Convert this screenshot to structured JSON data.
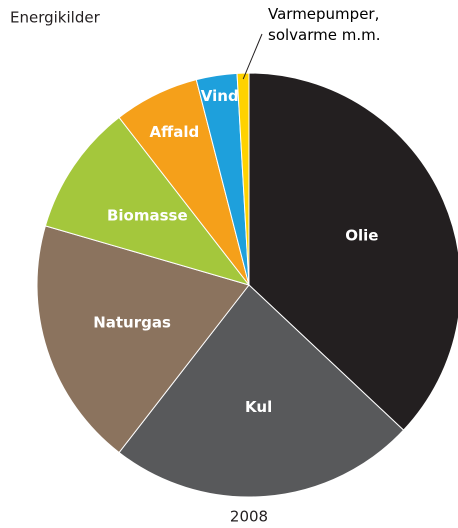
{
  "chart_data": {
    "type": "pie",
    "title": "Energikilder",
    "subtitle": "2008",
    "categories": [
      "Olie",
      "Kul",
      "Naturgas",
      "Biomasse",
      "Affald",
      "Vind",
      "Varmepumper,\nsolvarme m.m."
    ],
    "values": [
      37,
      23.5,
      19,
      10,
      6.5,
      3.1,
      0.9
    ],
    "colors": [
      "#231f20",
      "#58595b",
      "#8b735e",
      "#a4c73c",
      "#f5a01a",
      "#1ea0dc",
      "#ffd200"
    ]
  }
}
